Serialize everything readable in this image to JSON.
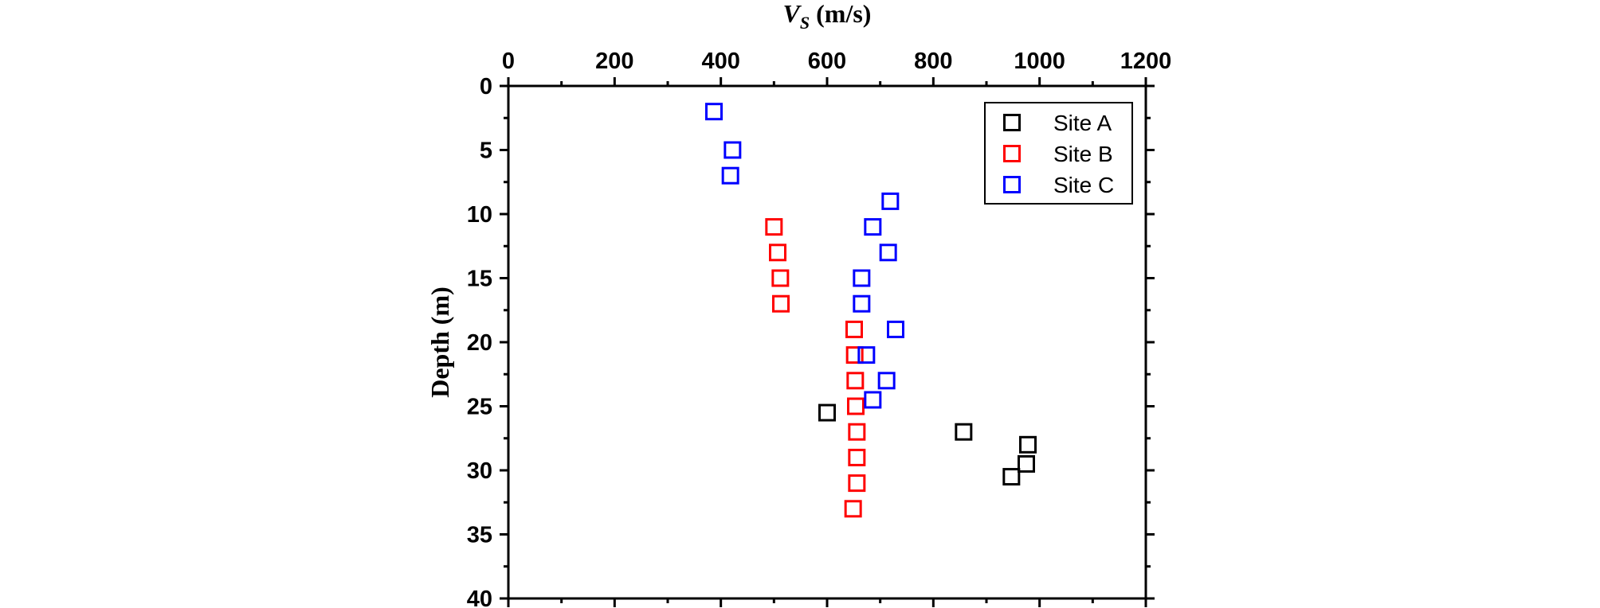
{
  "chart_data": {
    "type": "scatter",
    "title": "",
    "xlabel": {
      "main": "V",
      "subscript": "S",
      "unit": " (m/s)"
    },
    "ylabel": "Depth (m)",
    "x_axis_position": "top",
    "y_inverted": true,
    "xlim": [
      0,
      1200
    ],
    "ylim": [
      0,
      40
    ],
    "xticks": [
      0,
      200,
      400,
      600,
      800,
      1000,
      1200
    ],
    "xtick_labels": [
      "0",
      "200",
      "400",
      "600",
      "800",
      "1000",
      "1200"
    ],
    "yticks": [
      0,
      5,
      10,
      15,
      20,
      25,
      30,
      35,
      40
    ],
    "ytick_labels": [
      "0",
      "5",
      "10",
      "15",
      "20",
      "25",
      "30",
      "35",
      "40"
    ],
    "grid": false,
    "marker": "open-square",
    "legend_position": "top-right",
    "series": [
      {
        "name": "Site A",
        "color": "#000000",
        "points": [
          [
            600,
            25.5
          ],
          [
            857,
            27.0
          ],
          [
            978,
            28.0
          ],
          [
            975,
            29.5
          ],
          [
            947,
            30.5
          ]
        ]
      },
      {
        "name": "Site B",
        "color": "#ff0000",
        "points": [
          [
            500,
            11
          ],
          [
            507,
            13
          ],
          [
            512,
            15
          ],
          [
            513,
            17
          ],
          [
            651,
            19
          ],
          [
            652,
            21
          ],
          [
            653,
            23
          ],
          [
            654,
            25
          ],
          [
            656,
            27
          ],
          [
            656,
            29
          ],
          [
            656,
            31
          ],
          [
            649,
            33
          ]
        ]
      },
      {
        "name": "Site C",
        "color": "#0000ff",
        "points": [
          [
            387,
            2
          ],
          [
            422,
            5
          ],
          [
            418,
            7
          ],
          [
            719,
            9
          ],
          [
            686,
            11
          ],
          [
            715,
            13
          ],
          [
            665,
            15
          ],
          [
            665,
            17
          ],
          [
            729,
            19
          ],
          [
            674,
            21
          ],
          [
            712,
            23
          ],
          [
            686,
            24.5
          ]
        ]
      }
    ]
  }
}
